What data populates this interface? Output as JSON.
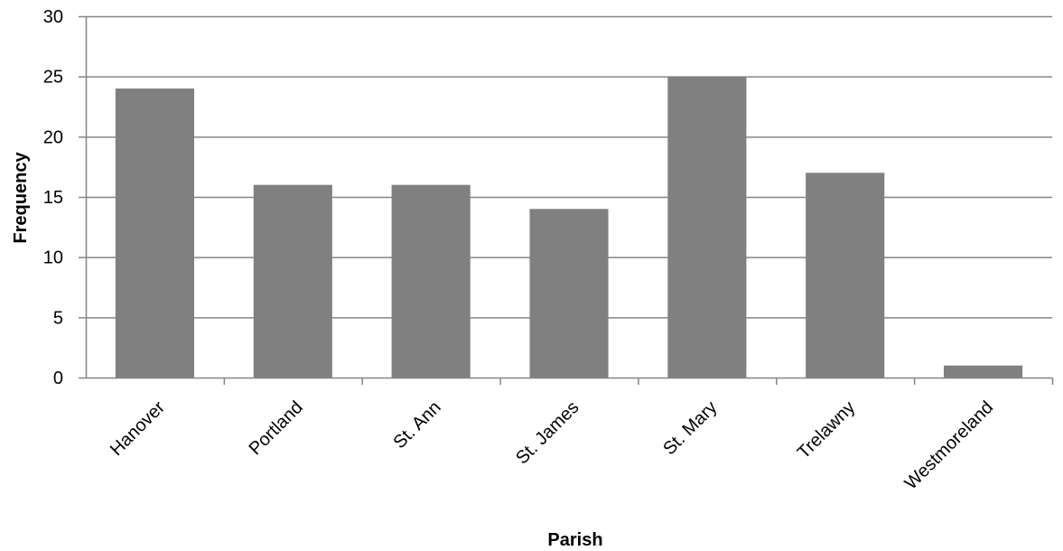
{
  "chart_data": {
    "type": "bar",
    "categories": [
      "Hanover",
      "Portland",
      "St. Ann",
      "St. James",
      "St. Mary",
      "Trelawny",
      "Westmoreland"
    ],
    "values": [
      24,
      16,
      16,
      14,
      25,
      17,
      1
    ],
    "title": "",
    "xlabel": "Parish",
    "ylabel": "Frequency",
    "ylim": [
      0,
      30
    ],
    "yticks": [
      0,
      5,
      10,
      15,
      20,
      25,
      30
    ],
    "grid": true,
    "legend": "none",
    "colors": {
      "bar": "#808080",
      "gridline": "#868686",
      "axis": "#868686",
      "text": "#000000"
    }
  }
}
